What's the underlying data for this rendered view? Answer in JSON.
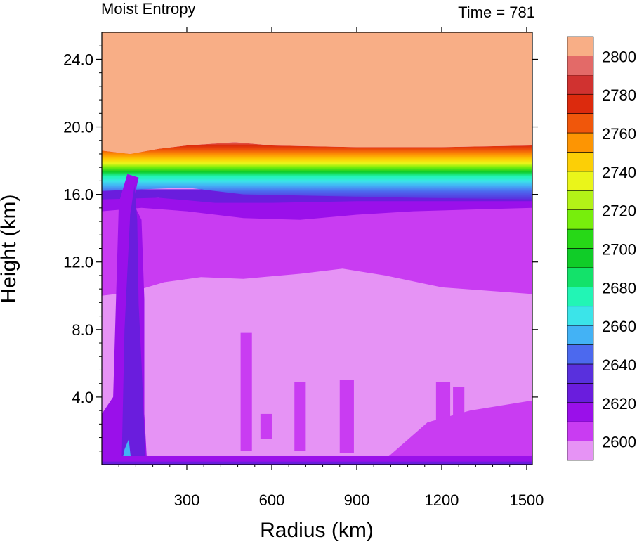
{
  "chart_data": {
    "type": "heatmap",
    "title_left": "Moist Entropy",
    "title_right": "Time = 781",
    "xlabel": "Radius (km)",
    "ylabel": "Height (km)",
    "xlim": [
      0,
      1520
    ],
    "ylim": [
      0,
      25.6
    ],
    "x_ticks": [
      300,
      600,
      900,
      1200,
      1500
    ],
    "x_tick_labels": [
      "300",
      "600",
      "900",
      "1200",
      "1500"
    ],
    "y_ticks": [
      4,
      8,
      12,
      16,
      20,
      24
    ],
    "y_tick_labels": [
      "4.0",
      "8.0",
      "12.0",
      "16.0",
      "20.0",
      "24.0"
    ],
    "colorbar": {
      "levels": [
        2600,
        2610,
        2620,
        2630,
        2640,
        2650,
        2660,
        2670,
        2680,
        2690,
        2700,
        2710,
        2720,
        2730,
        2740,
        2750,
        2760,
        2770,
        2780,
        2790,
        2800
      ],
      "labels": [
        "2600",
        "2620",
        "2640",
        "2660",
        "2680",
        "2700",
        "2720",
        "2740",
        "2760",
        "2780",
        "2800"
      ],
      "colors": [
        "#e693f5",
        "#c93cf2",
        "#9a10ea",
        "#6a1ddd",
        "#5930dd",
        "#4c69ee",
        "#43b2f5",
        "#3be4e9",
        "#22f5b5",
        "#13e26a",
        "#10cc28",
        "#27d817",
        "#77ee0c",
        "#b3f217",
        "#eaf51a",
        "#fccf06",
        "#fd9503",
        "#f0570b",
        "#dc2a0d",
        "#d03230",
        "#e36a68",
        "#f8ae86"
      ]
    },
    "fields": [
      {
        "name": "stratosphere",
        "value": 2800,
        "y_from": 18.6,
        "y_to": 25.6
      },
      {
        "name": "tropopause_gradient",
        "value_range": [
          2640,
          2800
        ],
        "y_from": 15.8,
        "y_to": 18.6
      },
      {
        "name": "upper_troposphere",
        "value_range": [
          2610,
          2640
        ],
        "y_from": 10.0,
        "y_to": 15.8
      },
      {
        "name": "mid_troposphere",
        "value": 2600,
        "y_from": 1.0,
        "y_to": 12.0
      },
      {
        "name": "eyewall",
        "value_range": [
          2620,
          2660
        ],
        "x_from": 0,
        "x_to": 160
      }
    ]
  }
}
